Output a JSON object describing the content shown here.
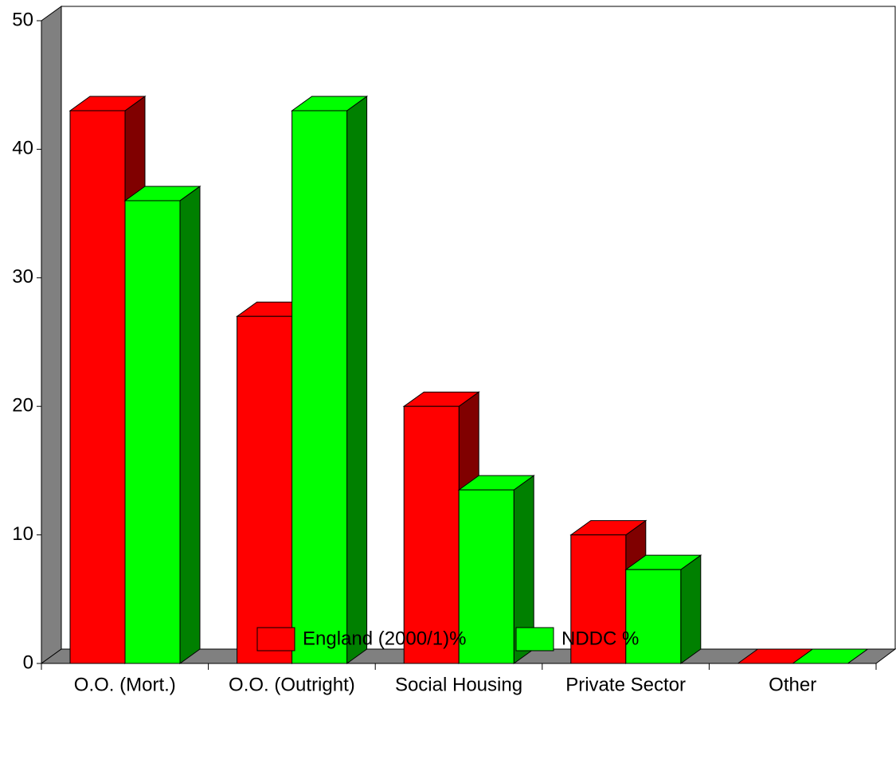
{
  "chart_data": {
    "type": "bar",
    "categories": [
      "O.O. (Mort.)",
      "O.O. (Outright)",
      "Social Housing",
      "Private Sector",
      "Other"
    ],
    "series": [
      {
        "name": "England (2000/1)%",
        "color": "#ff0000",
        "values": [
          43,
          27,
          20,
          10,
          0
        ]
      },
      {
        "name": "NDDC %",
        "color": "#00ff00",
        "values": [
          36,
          43,
          13.5,
          7.3,
          0
        ]
      }
    ],
    "ylim": [
      0,
      50
    ],
    "yticks": [
      0,
      10,
      20,
      30,
      40,
      50
    ],
    "grid": false,
    "legend": "bottom"
  }
}
